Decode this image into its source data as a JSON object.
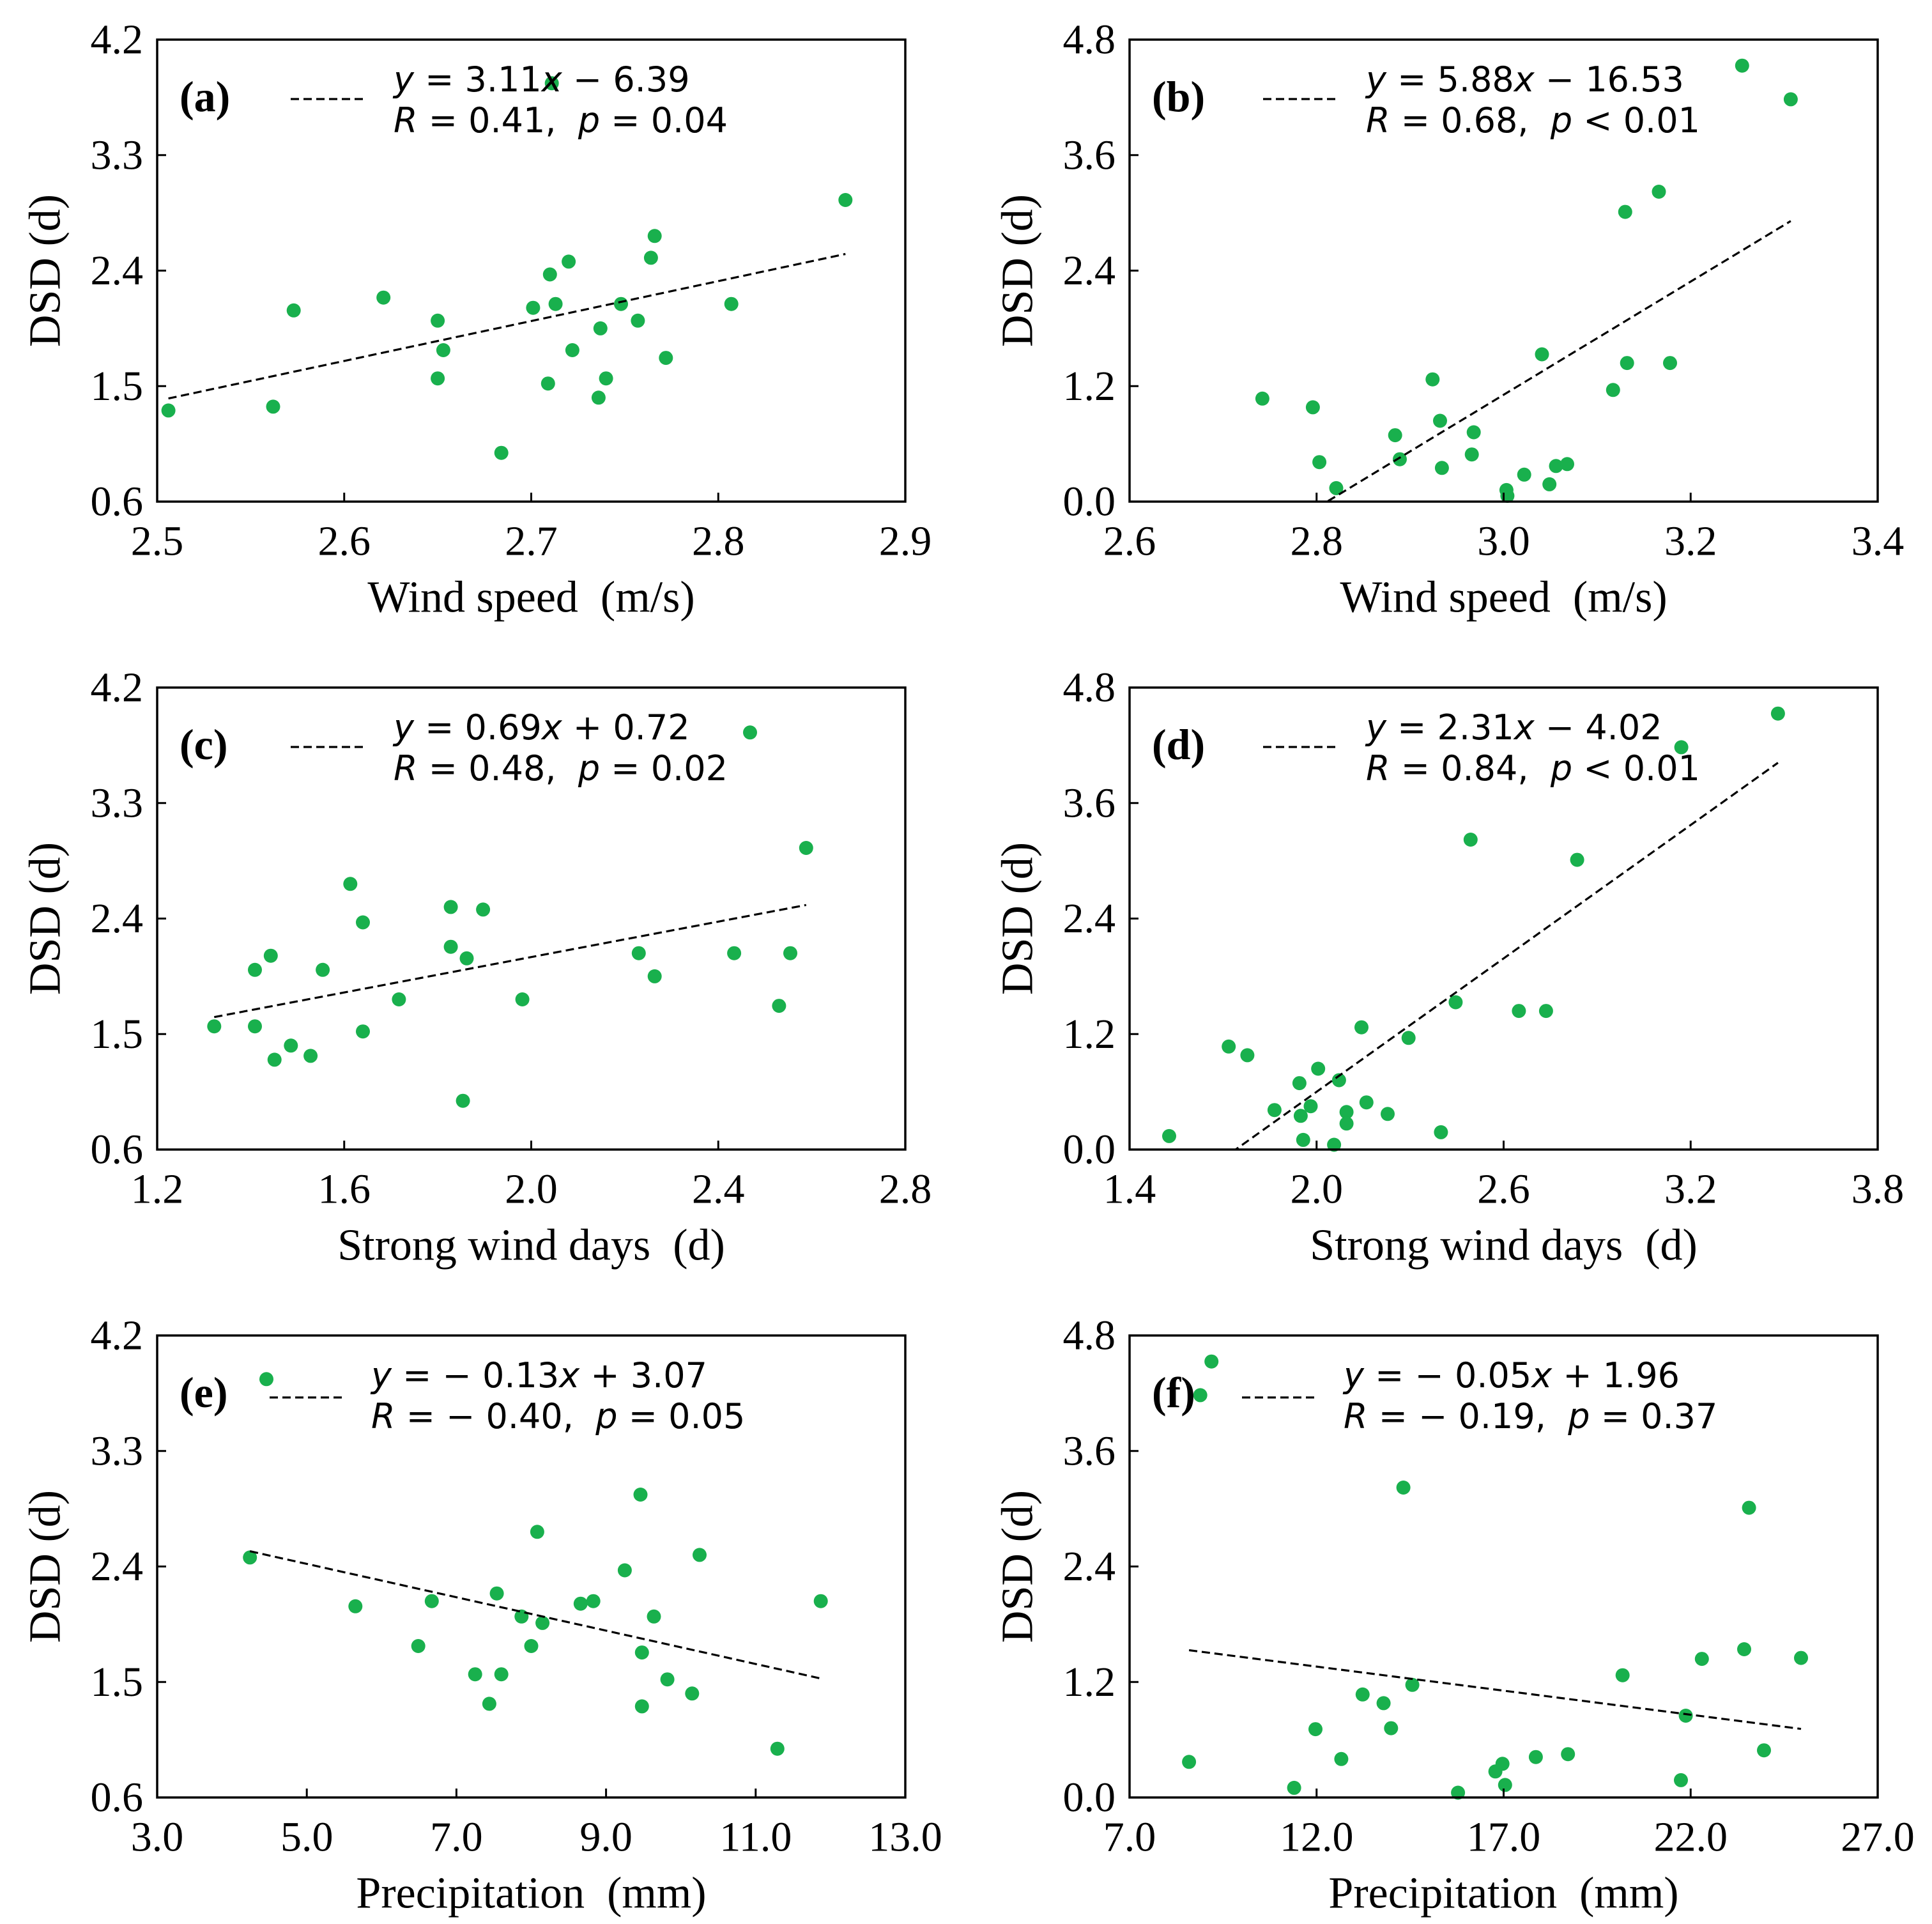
{
  "style": {
    "marker_color": "#19b04d",
    "line_color": "#000000",
    "frame_color": "#000000"
  },
  "chart_data": [
    {
      "type": "scatter",
      "panel_label": "(a)",
      "xlabel": "Wind speed  (m/s)",
      "ylabel": "DSD (d)",
      "xlim": [
        2.5,
        2.9
      ],
      "ylim": [
        0.6,
        4.2
      ],
      "xticks": [
        "2.5",
        "2.6",
        "2.7",
        "2.8",
        "2.9"
      ],
      "yticks": [
        "0.6",
        "1.5",
        "2.4",
        "3.3",
        "4.2"
      ],
      "x": [
        2.506,
        2.562,
        2.573,
        2.621,
        2.65,
        2.653,
        2.65,
        2.684,
        2.701,
        2.71,
        2.713,
        2.709,
        2.711,
        2.72,
        2.722,
        2.737,
        2.74,
        2.736,
        2.748,
        2.757,
        2.764,
        2.766,
        2.772,
        2.807,
        2.868
      ],
      "y": [
        1.31,
        1.34,
        2.09,
        2.19,
        2.01,
        1.78,
        1.56,
        0.98,
        2.11,
        2.37,
        2.14,
        1.52,
        3.86,
        2.47,
        1.78,
        1.95,
        1.56,
        1.41,
        2.14,
        2.01,
        2.5,
        2.67,
        1.72,
        2.14,
        2.95
      ],
      "fit": {
        "slope": 3.11,
        "intercept": -6.39,
        "x_range": [
          2.506,
          2.868
        ]
      },
      "equation": "y = 3.11x − 6.39",
      "stats": "R = 0.41,  p = 0.04"
    },
    {
      "type": "scatter",
      "panel_label": "(b)",
      "xlabel": "Wind speed  (m/s)",
      "ylabel": "DSD (d)",
      "xlim": [
        2.6,
        3.4
      ],
      "ylim": [
        0.0,
        4.8
      ],
      "xticks": [
        "2.6",
        "2.8",
        "3.0",
        "3.2",
        "3.4"
      ],
      "yticks": [
        "0.0",
        "1.2",
        "2.4",
        "3.6",
        "4.8"
      ],
      "x": [
        2.742,
        2.796,
        2.803,
        2.821,
        2.884,
        2.889,
        2.924,
        2.932,
        2.934,
        2.966,
        2.968,
        3.003,
        3.004,
        3.022,
        3.041,
        3.049,
        3.056,
        3.068,
        3.117,
        3.132,
        3.13,
        3.166,
        3.178,
        3.255,
        3.307
      ],
      "y": [
        1.07,
        0.98,
        0.41,
        0.14,
        0.69,
        0.44,
        1.27,
        0.84,
        0.35,
        0.49,
        0.72,
        0.12,
        0.06,
        0.28,
        1.53,
        0.18,
        0.37,
        0.39,
        1.16,
        1.44,
        3.01,
        3.22,
        1.44,
        4.53,
        4.18
      ],
      "fit": {
        "slope": 5.88,
        "intercept": -16.53,
        "x_range": [
          2.742,
          3.307
        ]
      },
      "equation": "y = 5.88x − 16.53",
      "stats": "R = 0.68,  p < 0.01"
    },
    {
      "type": "scatter",
      "panel_label": "(c)",
      "xlabel": "Strong wind days  (d)",
      "ylabel": "DSD (d)",
      "xlim": [
        1.2,
        2.8
      ],
      "ylim": [
        0.6,
        4.2
      ],
      "xticks": [
        "1.2",
        "1.6",
        "2.0",
        "2.4",
        "2.8"
      ],
      "yticks": [
        "0.6",
        "1.5",
        "2.4",
        "3.3",
        "4.2"
      ],
      "x": [
        1.322,
        1.409,
        1.409,
        1.443,
        1.451,
        1.486,
        1.528,
        1.554,
        1.613,
        1.64,
        1.64,
        1.717,
        1.828,
        1.828,
        1.862,
        1.854,
        1.897,
        1.981,
        2.23,
        2.264,
        2.434,
        2.468,
        2.53,
        2.554,
        2.588
      ],
      "y": [
        1.56,
        1.56,
        2.0,
        2.11,
        1.3,
        1.41,
        1.33,
        2.0,
        2.67,
        2.37,
        1.52,
        1.77,
        2.49,
        2.18,
        2.09,
        0.98,
        2.47,
        1.77,
        2.13,
        1.95,
        2.13,
        3.85,
        1.72,
        2.13,
        2.95
      ],
      "fit": {
        "slope": 0.69,
        "intercept": 0.72,
        "x_range": [
          1.322,
          2.588
        ]
      },
      "equation": "y = 0.69x + 0.72",
      "stats": "R = 0.48,  p = 0.02"
    },
    {
      "type": "scatter",
      "panel_label": "(d)",
      "xlabel": "Strong wind days  (d)",
      "ylabel": "DSD (d)",
      "xlim": [
        1.4,
        3.8
      ],
      "ylim": [
        0.0,
        4.8
      ],
      "xticks": [
        "1.4",
        "2.0",
        "2.6",
        "3.2",
        "3.8"
      ],
      "yticks": [
        "0.0",
        "1.2",
        "2.4",
        "3.6",
        "4.8"
      ],
      "x": [
        1.527,
        1.718,
        1.778,
        1.865,
        1.945,
        1.949,
        1.957,
        1.981,
        2.005,
        2.056,
        2.072,
        2.096,
        2.096,
        2.144,
        2.16,
        2.228,
        2.295,
        2.399,
        2.446,
        2.494,
        2.649,
        2.736,
        2.836,
        3.17,
        3.48
      ],
      "y": [
        0.14,
        1.07,
        0.98,
        0.41,
        0.69,
        0.35,
        0.1,
        0.45,
        0.84,
        0.05,
        0.72,
        0.39,
        0.27,
        1.27,
        0.49,
        0.37,
        1.16,
        0.18,
        1.53,
        3.22,
        1.44,
        1.44,
        3.01,
        4.18,
        4.53
      ],
      "fit": {
        "slope": 2.31,
        "intercept": -4.02,
        "x_range": [
          1.527,
          3.48
        ]
      },
      "equation": "y = 2.31x − 4.02",
      "stats": "R = 0.84,  p < 0.01"
    },
    {
      "type": "scatter",
      "panel_label": "(e)",
      "xlabel": "Precipitation  (mm)",
      "ylabel": "DSD (d)",
      "xlim": [
        3.0,
        13.0
      ],
      "ylim": [
        0.6,
        4.2
      ],
      "xticks": [
        "3.0",
        "5.0",
        "7.0",
        "9.0",
        "11.0",
        "13.0"
      ],
      "yticks": [
        "0.6",
        "1.5",
        "2.4",
        "3.3",
        "4.2"
      ],
      "x": [
        4.24,
        4.46,
        5.65,
        6.49,
        6.67,
        7.25,
        7.44,
        7.54,
        7.6,
        7.87,
        8.0,
        8.08,
        8.15,
        8.66,
        8.83,
        9.25,
        9.46,
        9.48,
        9.48,
        9.64,
        9.82,
        10.15,
        10.25,
        11.29,
        11.87
      ],
      "y": [
        2.47,
        3.86,
        2.09,
        1.78,
        2.13,
        1.56,
        1.33,
        2.19,
        1.56,
        2.01,
        1.78,
        2.67,
        1.96,
        2.11,
        2.13,
        2.37,
        2.96,
        1.73,
        1.31,
        2.01,
        1.52,
        1.41,
        2.49,
        0.98,
        2.13
      ],
      "fit": {
        "slope": -0.13,
        "intercept": 3.07,
        "x_range": [
          4.24,
          11.87
        ]
      },
      "equation": "y = − 0.13x + 3.07",
      "stats": "R = − 0.40,  p = 0.05"
    },
    {
      "type": "scatter",
      "panel_label": "(f)",
      "xlabel": "Precipitation  (mm)",
      "ylabel": "DSD (d)",
      "xlim": [
        7.0,
        27.0
      ],
      "ylim": [
        0.0,
        4.8
      ],
      "xticks": [
        "7.0",
        "12.0",
        "17.0",
        "22.0",
        "27.0"
      ],
      "yticks": [
        "0.0",
        "1.2",
        "2.4",
        "3.6",
        "4.8"
      ],
      "x": [
        8.59,
        8.89,
        9.19,
        11.4,
        11.97,
        12.66,
        13.23,
        13.79,
        13.99,
        14.32,
        14.56,
        15.78,
        16.78,
        16.97,
        17.04,
        17.86,
        18.72,
        20.18,
        21.74,
        21.87,
        22.3,
        23.43,
        23.56,
        23.96,
        24.95
      ],
      "y": [
        0.37,
        4.18,
        4.53,
        0.1,
        0.71,
        0.4,
        1.07,
        0.98,
        0.72,
        3.22,
        1.17,
        0.05,
        0.27,
        0.35,
        0.13,
        0.42,
        0.45,
        1.27,
        0.18,
        0.85,
        1.44,
        1.54,
        3.01,
        0.49,
        1.45
      ],
      "fit": {
        "slope": -0.05,
        "intercept": 1.96,
        "x_range": [
          8.59,
          24.95
        ]
      },
      "equation": "y = − 0.05x + 1.96",
      "stats": "R = − 0.19,  p = 0.37"
    }
  ]
}
